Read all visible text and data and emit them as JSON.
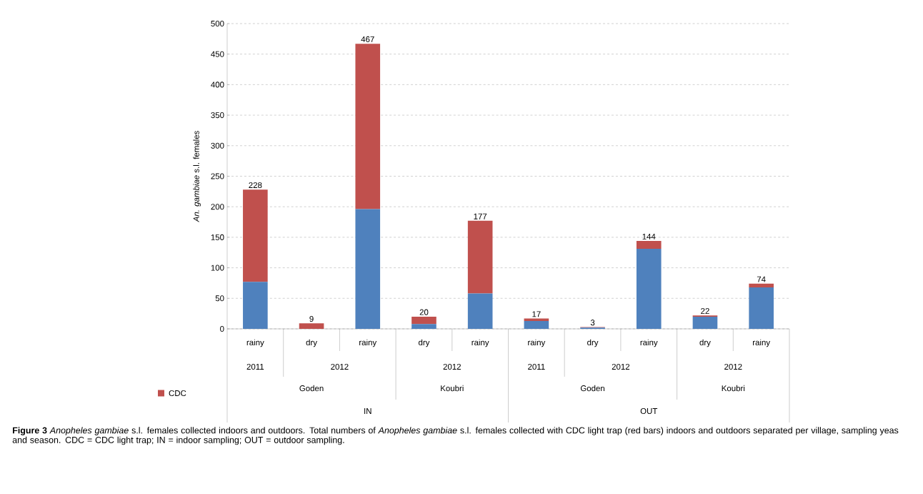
{
  "chart_data": {
    "type": "bar",
    "stacked": true,
    "title": "**Figure 3** *Anopheles gambiae* s.l. females collected indoors and outdoors.",
    "ylabel": "*An. gambiae* s.l. females",
    "categories": [
      "rainy",
      "dry",
      "rainy",
      "dry",
      "rainy",
      "rainy",
      "dry",
      "rainy",
      "dry",
      "rainy"
    ],
    "series": [
      {
        "color": "#4f81bd",
        "values": [
          77,
          0,
          196,
          8,
          58,
          13,
          2,
          131,
          20,
          68
        ]
      },
      {
        "name": "CDC",
        "color": "#c0504d",
        "values": [
          151,
          9,
          271,
          12,
          119,
          4,
          1,
          13,
          2,
          6
        ]
      }
    ],
    "totals": [
      "228",
      "9",
      "467",
      "20",
      "177",
      "17",
      "3",
      "144",
      "22",
      "74"
    ],
    "ylim": [
      0,
      500
    ],
    "yticks": [
      0,
      50,
      100,
      150,
      200,
      250,
      300,
      350,
      400,
      450,
      500
    ],
    "grid": "y",
    "legend": "bottom left",
    "annotations": [
      "2011",
      "2012",
      "2012",
      "2011",
      "2012",
      "2012",
      "Goden",
      "Koubri",
      "Goden",
      "Koubri",
      "IN",
      "OUT",
      "Total numbers of *Anopheles gambiae* s.l. females collected with CDC light trap (red bars) indoors and outdoors separated per village, sampling yeas and season. CDC = CDC light trap; IN = indoor sampling; OUT = outdoor sampling."
    ]
  }
}
